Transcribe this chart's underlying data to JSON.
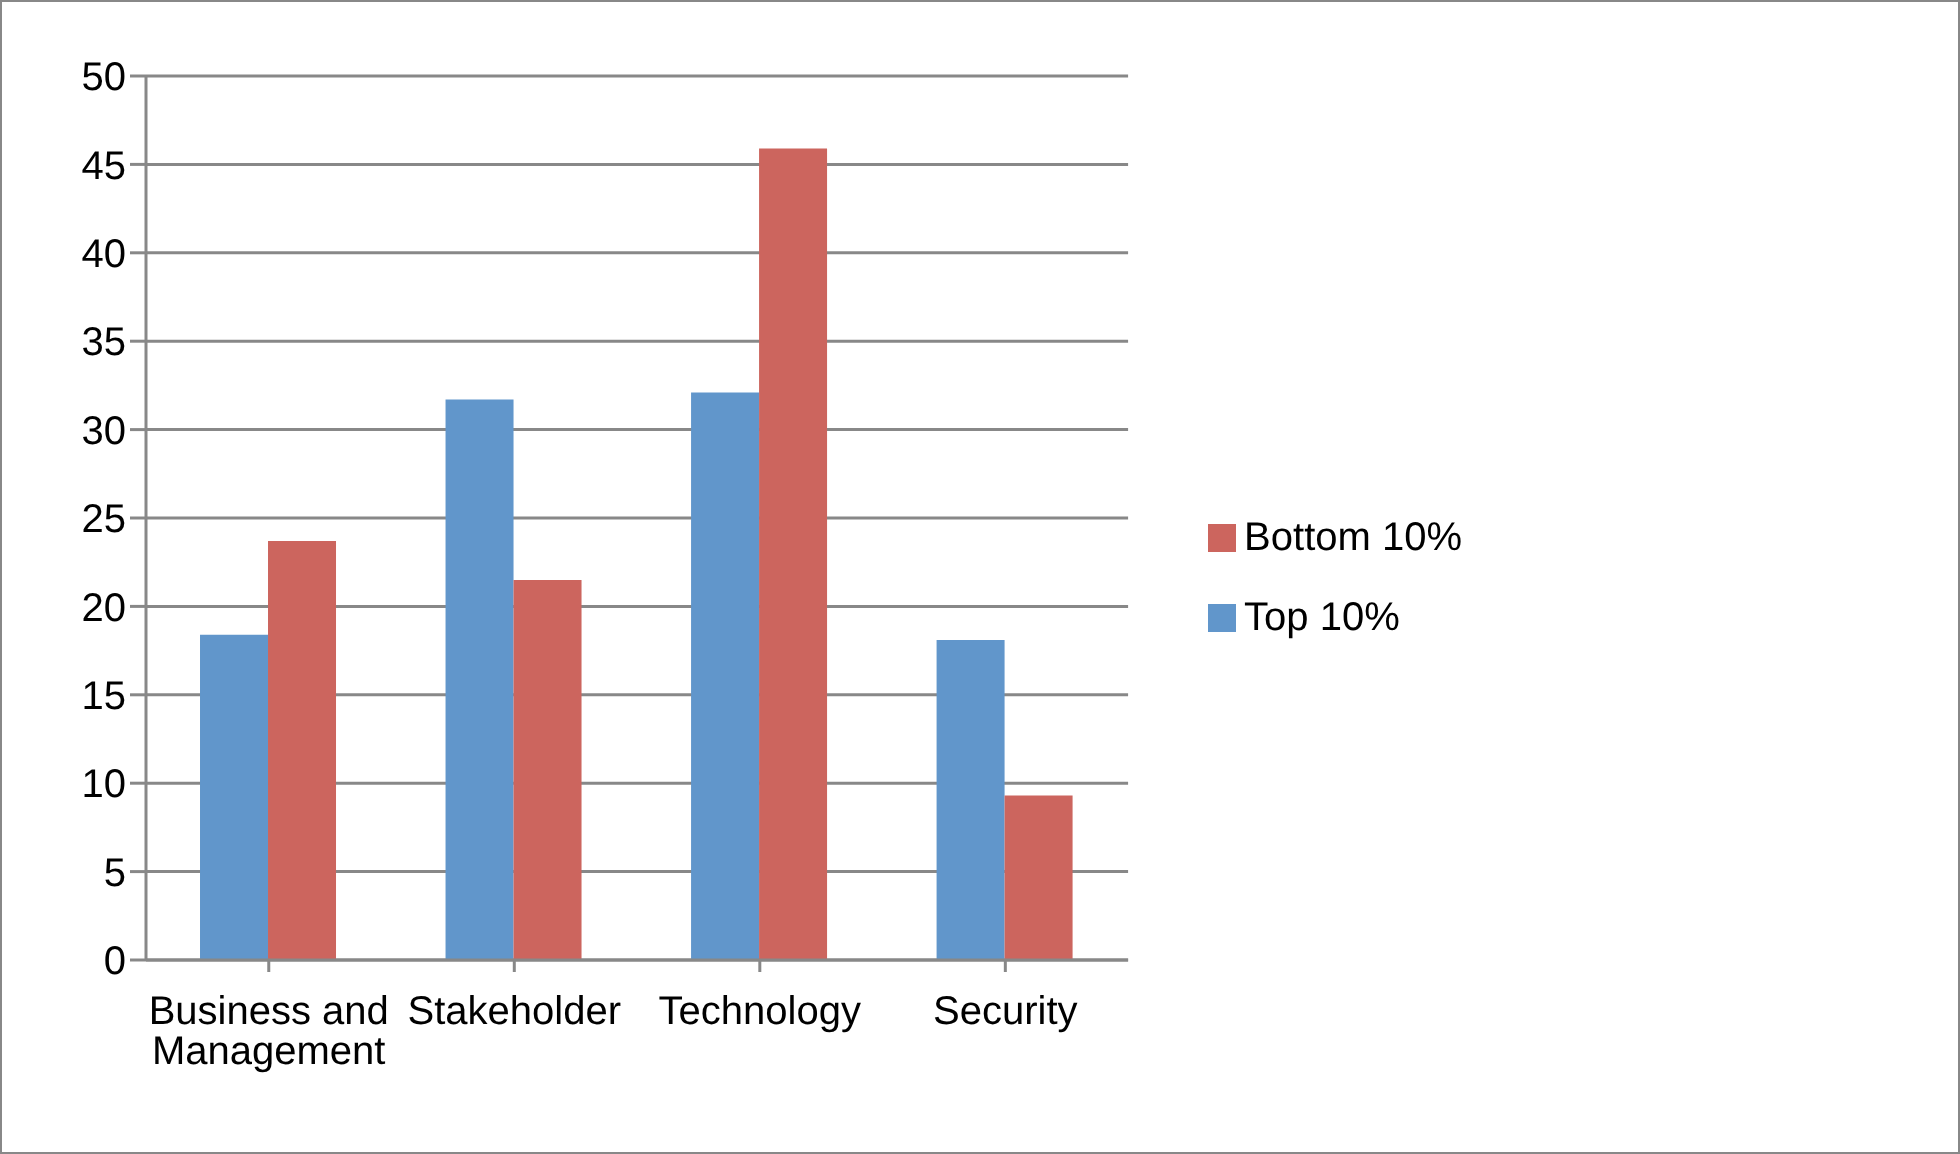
{
  "chart_data": {
    "type": "bar",
    "categories": [
      "Business and Management",
      "Stakeholder",
      "Technology",
      "Security"
    ],
    "series": [
      {
        "name": "Top 10%",
        "color": "#6196cb",
        "values": [
          18.4,
          31.7,
          32.1,
          18.1
        ]
      },
      {
        "name": "Bottom 10%",
        "color": "#cc655e",
        "values": [
          23.7,
          21.5,
          45.9,
          9.3
        ]
      }
    ],
    "ylim": [
      0,
      50
    ],
    "yticks": [
      0,
      5,
      10,
      15,
      20,
      25,
      30,
      35,
      40,
      45,
      50
    ],
    "grid": "y",
    "legend": "right"
  }
}
